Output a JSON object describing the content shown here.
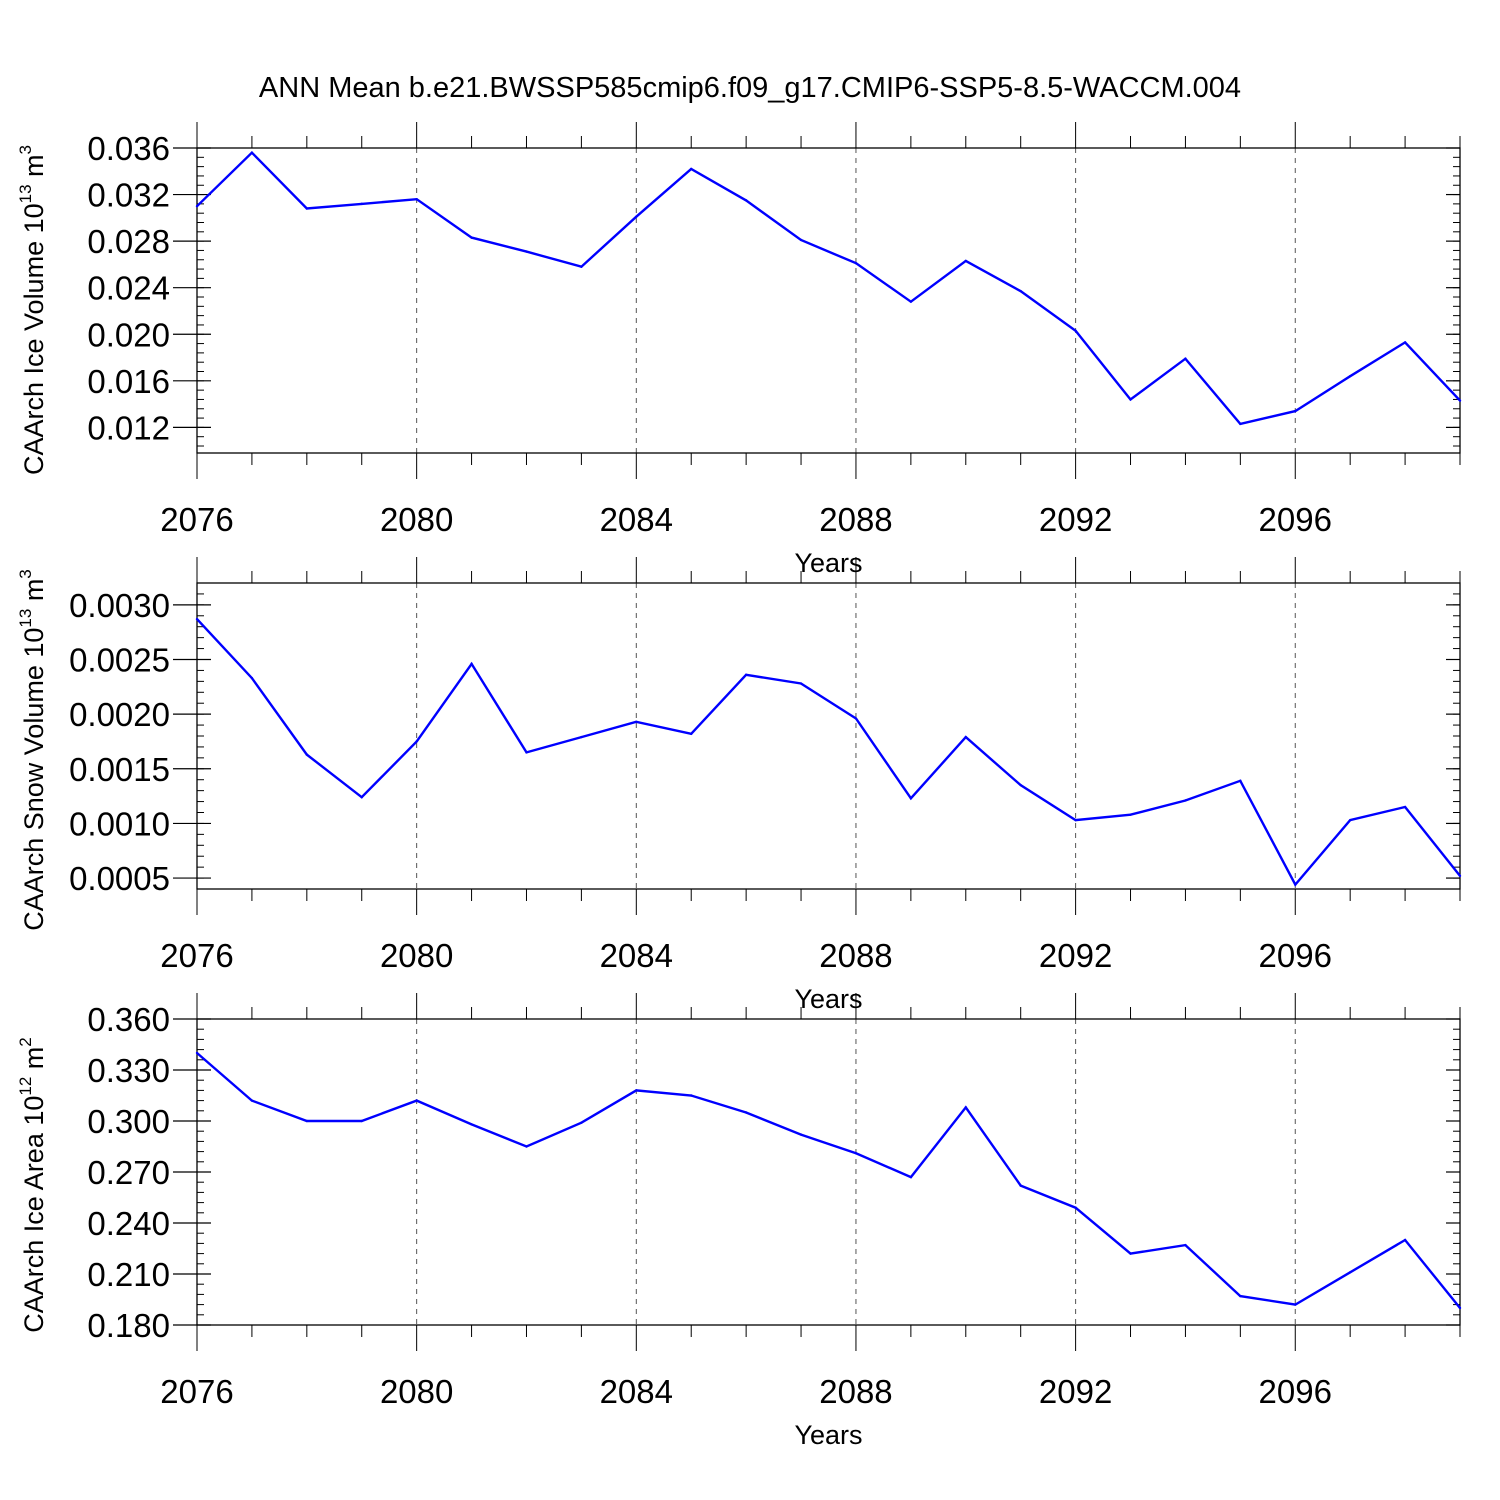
{
  "title": "ANN Mean b.e21.BWSSP585cmip6.f09_g17.CMIP6-SSP5-8.5-WACCM.004",
  "colors": {
    "line": "#0000ff",
    "axis": "#000000",
    "grid": "#555555"
  },
  "chart_data": [
    {
      "type": "line",
      "ylabel": "CAArch Ice Volume 10",
      "yunit_exp": "13",
      "yunit": "m",
      "yunit_pow": "3",
      "xlabel": "Years",
      "xlim": [
        2076,
        2099
      ],
      "ylim": [
        0.0098,
        0.036
      ],
      "yticks": [
        0.012,
        0.016,
        0.02,
        0.024,
        0.028,
        0.032,
        0.036
      ],
      "ytick_labels": [
        "0.012",
        "0.016",
        "0.020",
        "0.024",
        "0.028",
        "0.032",
        "0.036"
      ],
      "y_minor_step": 0.0008,
      "xticks": [
        2076,
        2080,
        2084,
        2088,
        2092,
        2096
      ],
      "xtick_labels": [
        "2076",
        "2080",
        "2084",
        "2088",
        "2092",
        "2096"
      ],
      "grid": "vertical dashed at major x ticks",
      "x": [
        2076,
        2077,
        2078,
        2079,
        2080,
        2081,
        2082,
        2083,
        2084,
        2085,
        2086,
        2087,
        2088,
        2089,
        2090,
        2091,
        2092,
        2093,
        2094,
        2095,
        2096,
        2097,
        2098,
        2099
      ],
      "values": [
        0.031,
        0.0356,
        0.0308,
        0.0312,
        0.0316,
        0.0283,
        0.0271,
        0.0258,
        0.0301,
        0.0342,
        0.0315,
        0.0281,
        0.0261,
        0.0228,
        0.0263,
        0.0237,
        0.0203,
        0.0144,
        0.0179,
        0.0123,
        0.0134,
        0.0164,
        0.0193,
        0.0143
      ]
    },
    {
      "type": "line",
      "ylabel": "CAArch Snow Volume 10",
      "yunit_exp": "13",
      "yunit": "m",
      "yunit_pow": "3",
      "xlabel": "Years",
      "xlim": [
        2076,
        2099
      ],
      "ylim": [
        0.0004,
        0.0032
      ],
      "yticks": [
        0.0005,
        0.001,
        0.0015,
        0.002,
        0.0025,
        0.003
      ],
      "ytick_labels": [
        "0.0005",
        "0.0010",
        "0.0015",
        "0.0020",
        "0.0025",
        "0.0030"
      ],
      "y_minor_step": 0.0001,
      "xticks": [
        2076,
        2080,
        2084,
        2088,
        2092,
        2096
      ],
      "xtick_labels": [
        "2076",
        "2080",
        "2084",
        "2088",
        "2092",
        "2096"
      ],
      "grid": "vertical dashed at major x ticks",
      "x": [
        2076,
        2077,
        2078,
        2079,
        2080,
        2081,
        2082,
        2083,
        2084,
        2085,
        2086,
        2087,
        2088,
        2089,
        2090,
        2091,
        2092,
        2093,
        2094,
        2095,
        2096,
        2097,
        2098,
        2099
      ],
      "values": [
        0.00287,
        0.00233,
        0.00163,
        0.00124,
        0.00175,
        0.00246,
        0.00165,
        0.00179,
        0.00193,
        0.00182,
        0.00236,
        0.00228,
        0.00196,
        0.00123,
        0.00179,
        0.00135,
        0.00103,
        0.00108,
        0.00121,
        0.00139,
        0.00044,
        0.00103,
        0.00115,
        0.00052
      ]
    },
    {
      "type": "line",
      "ylabel": "CAArch Ice Area 10",
      "yunit_exp": "12",
      "yunit": "m",
      "yunit_pow": "2",
      "xlabel": "Years",
      "xlim": [
        2076,
        2099
      ],
      "ylim": [
        0.18,
        0.36
      ],
      "yticks": [
        0.18,
        0.21,
        0.24,
        0.27,
        0.3,
        0.33,
        0.36
      ],
      "ytick_labels": [
        "0.180",
        "0.210",
        "0.240",
        "0.270",
        "0.300",
        "0.330",
        "0.360"
      ],
      "y_minor_step": 0.006,
      "xticks": [
        2076,
        2080,
        2084,
        2088,
        2092,
        2096
      ],
      "xtick_labels": [
        "2076",
        "2080",
        "2084",
        "2088",
        "2092",
        "2096"
      ],
      "grid": "vertical dashed at major x ticks",
      "x": [
        2076,
        2077,
        2078,
        2079,
        2080,
        2081,
        2082,
        2083,
        2084,
        2085,
        2086,
        2087,
        2088,
        2089,
        2090,
        2091,
        2092,
        2093,
        2094,
        2095,
        2096,
        2097,
        2098,
        2099
      ],
      "values": [
        0.34,
        0.312,
        0.3,
        0.3,
        0.312,
        0.298,
        0.285,
        0.299,
        0.318,
        0.315,
        0.305,
        0.292,
        0.281,
        0.267,
        0.308,
        0.262,
        0.249,
        0.222,
        0.227,
        0.197,
        0.192,
        0.211,
        0.23,
        0.19
      ]
    }
  ]
}
